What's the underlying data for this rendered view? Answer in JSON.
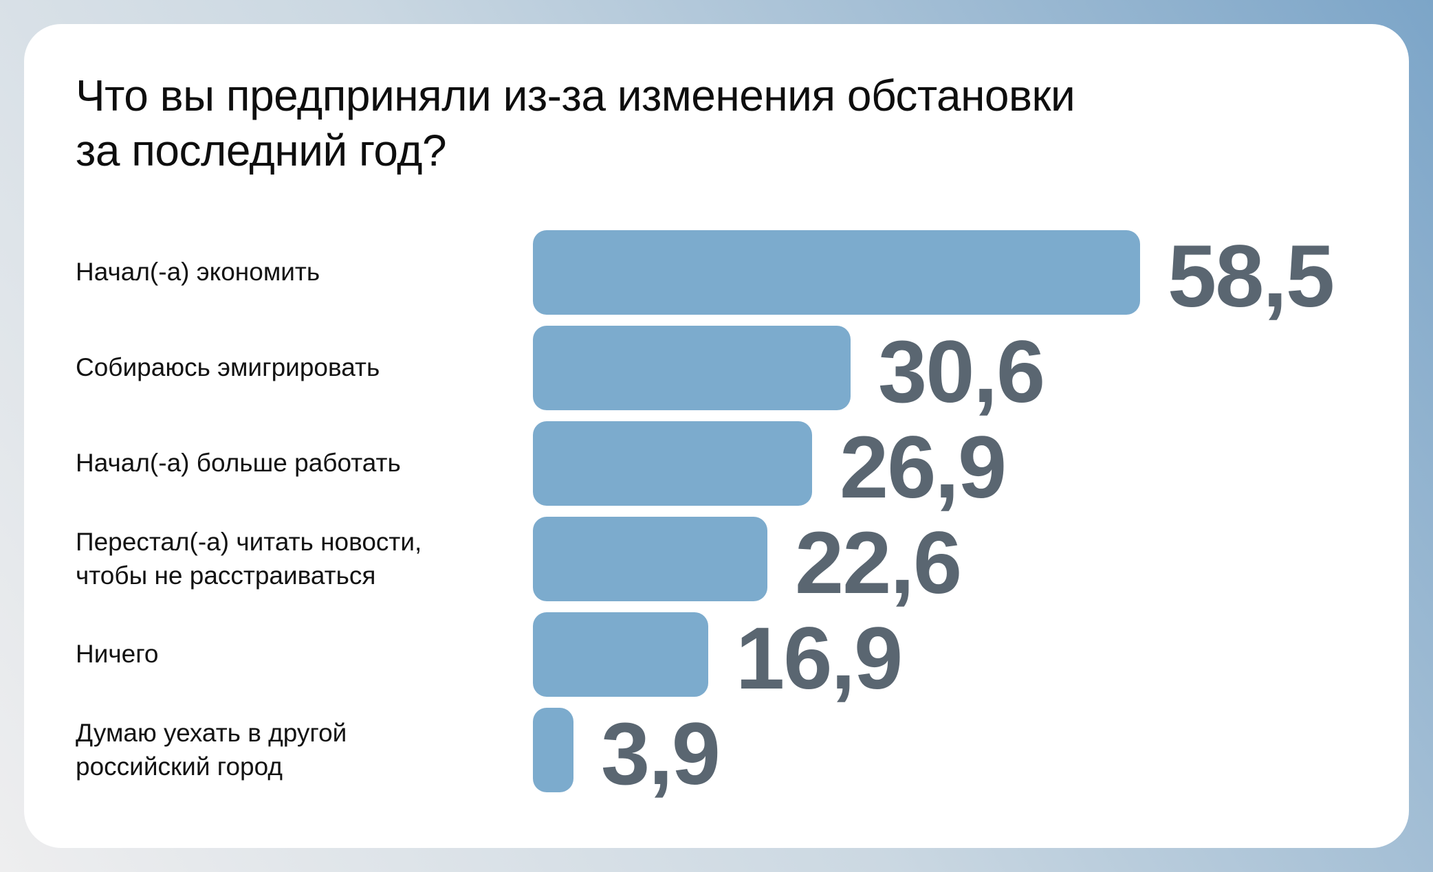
{
  "page": {
    "background_gradient": [
      "#eeeeef",
      "#cbd8e2",
      "#7ca5c8"
    ],
    "card_color": "#ffffff"
  },
  "chart_data": {
    "type": "bar",
    "orientation": "horizontal",
    "title": "Что вы предприняли из-за изменения обстановки за последний год?",
    "title_lines": [
      "Что вы предприняли из-за изменения обстановки",
      "за последний год?"
    ],
    "categories": [
      "Начал(-а) экономить",
      "Собираюсь эмигрировать",
      "Начал(-а) больше работать",
      "Перестал(-а) читать новости, чтобы не расстраиваться",
      "Ничего",
      "Думаю уехать в другой российский город"
    ],
    "values": [
      58.5,
      30.6,
      26.9,
      22.6,
      16.9,
      3.9
    ],
    "value_labels": [
      "58,5",
      "30,6",
      "26,9",
      "22,6",
      "16,9",
      "3,9"
    ],
    "xlim": [
      0,
      60
    ],
    "value_format": "comma-decimal",
    "legend": "none",
    "grid": false,
    "bar_color": "#7cabcd",
    "value_color": "#5a6671",
    "label_color": "#121212",
    "rows": [
      {
        "label": "Начал(-а) экономить",
        "label_lines": [
          "Начал(-а) экономить"
        ],
        "value": 58.5,
        "value_label": "58,5"
      },
      {
        "label": "Собираюсь эмигрировать",
        "label_lines": [
          "Собираюсь эмигрировать"
        ],
        "value": 30.6,
        "value_label": "30,6"
      },
      {
        "label": "Начал(-а) больше работать",
        "label_lines": [
          "Начал(-а) больше работать"
        ],
        "value": 26.9,
        "value_label": "26,9"
      },
      {
        "label": "Перестал(-а) читать новости, чтобы не расстраиваться",
        "label_lines": [
          "Перестал(-а) читать новости,",
          "чтобы не расстраиваться"
        ],
        "value": 22.6,
        "value_label": "22,6"
      },
      {
        "label": "Ничего",
        "label_lines": [
          "Ничего"
        ],
        "value": 16.9,
        "value_label": "16,9"
      },
      {
        "label": "Думаю уехать в другой российский город",
        "label_lines": [
          "Думаю уехать в другой",
          "российский город"
        ],
        "value": 3.9,
        "value_label": "3,9"
      }
    ]
  }
}
